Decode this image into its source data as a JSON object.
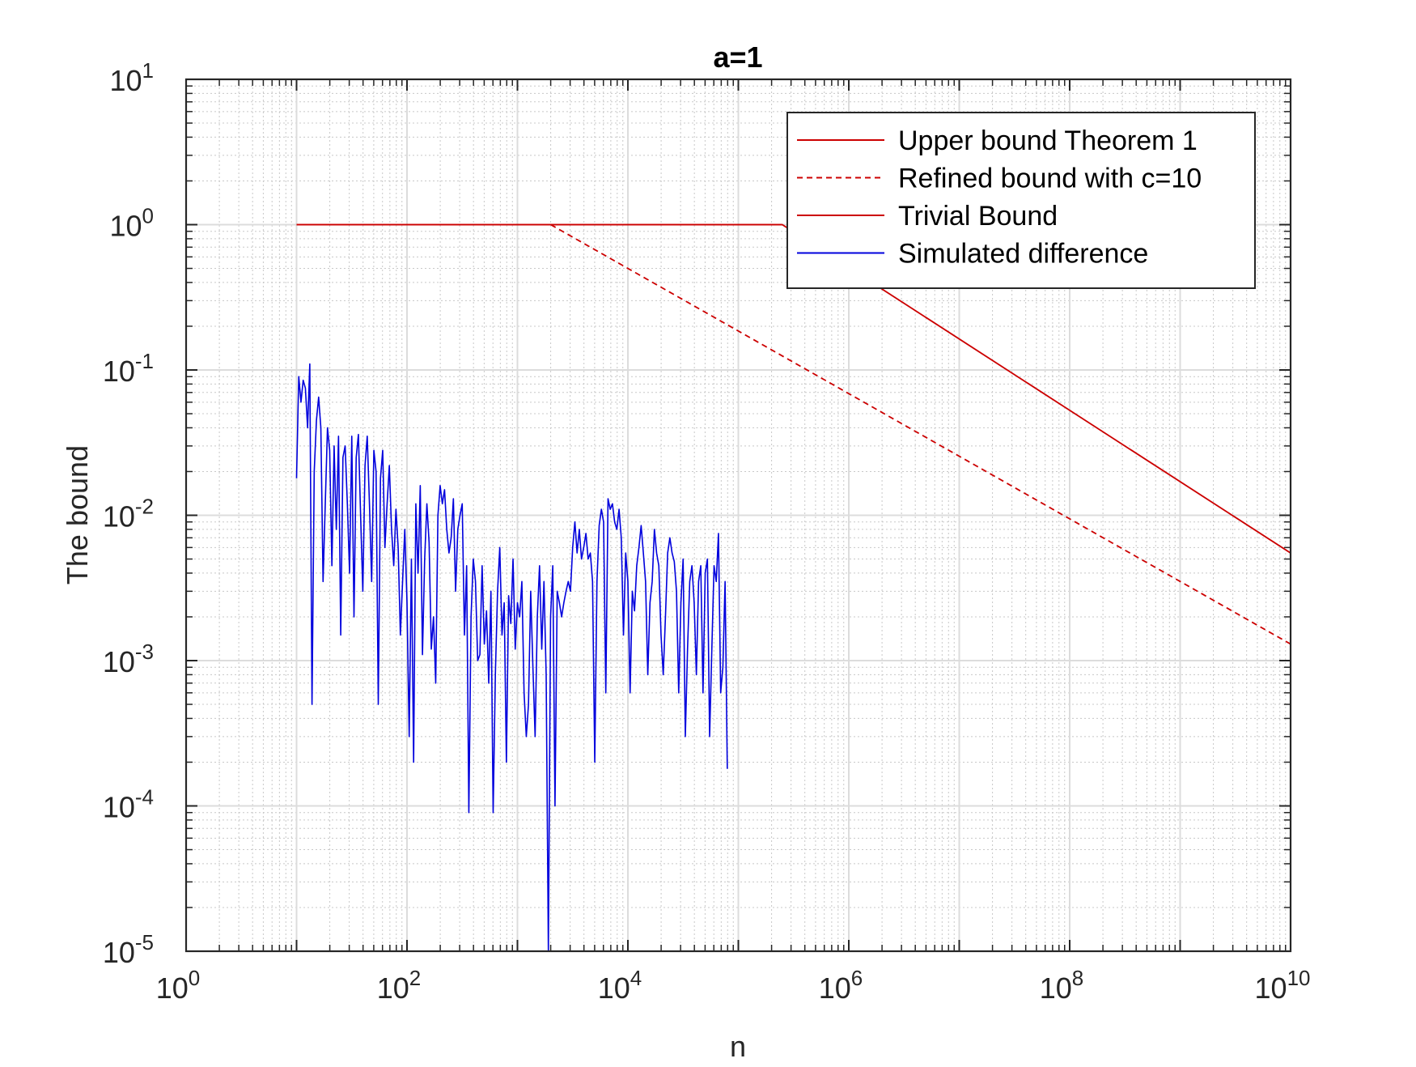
{
  "chart_data": {
    "type": "line",
    "title": "a=1",
    "xlabel": "n",
    "ylabel": "The bound",
    "xscale": "log",
    "yscale": "log",
    "xlim": [
      1,
      10000000000
    ],
    "ylim": [
      1e-05,
      10
    ],
    "grid": true,
    "minor_grid": true,
    "legend_location": "top-right",
    "x_ticks": [
      {
        "value": 1,
        "base": "10",
        "exp": "0"
      },
      {
        "value": 100,
        "base": "10",
        "exp": "2"
      },
      {
        "value": 10000,
        "base": "10",
        "exp": "4"
      },
      {
        "value": 1000000,
        "base": "10",
        "exp": "6"
      },
      {
        "value": 100000000,
        "base": "10",
        "exp": "8"
      },
      {
        "value": 10000000000,
        "base": "10",
        "exp": "10"
      }
    ],
    "y_ticks": [
      {
        "value": 1e-05,
        "base": "10",
        "exp": "-5"
      },
      {
        "value": 0.0001,
        "base": "10",
        "exp": "-4"
      },
      {
        "value": 0.001,
        "base": "10",
        "exp": "-3"
      },
      {
        "value": 0.01,
        "base": "10",
        "exp": "-2"
      },
      {
        "value": 0.1,
        "base": "10",
        "exp": "-1"
      },
      {
        "value": 1,
        "base": "10",
        "exp": "0"
      },
      {
        "value": 10,
        "base": "10",
        "exp": "1"
      }
    ],
    "series": [
      {
        "name": "Upper bound Theorem 1",
        "color": "#cc0000",
        "style": "solid",
        "x": [
          10,
          250000,
          10000000000
        ],
        "y": [
          1,
          1,
          0.0055
        ]
      },
      {
        "name": "Refined bound with c=10",
        "color": "#cc0000",
        "style": "dashed",
        "x": [
          2000,
          10000000000
        ],
        "y": [
          1,
          0.0013
        ]
      },
      {
        "name": "Trivial Bound",
        "color": "#cc0000",
        "style": "solid",
        "x": [
          10,
          250000
        ],
        "y": [
          1,
          1
        ]
      },
      {
        "name": "Simulated difference",
        "color": "#0000dd",
        "style": "solid",
        "x_log10_start": 1.0,
        "x_log10_step": 0.02,
        "y": [
          0.018,
          0.09,
          0.06,
          0.085,
          0.075,
          0.04,
          0.11,
          0.0005,
          0.02,
          0.045,
          0.065,
          0.04,
          0.0035,
          0.012,
          0.04,
          0.028,
          0.0045,
          0.03,
          0.008,
          0.035,
          0.0015,
          0.025,
          0.03,
          0.012,
          0.004,
          0.035,
          0.002,
          0.025,
          0.036,
          0.01,
          0.003,
          0.022,
          0.035,
          0.012,
          0.0035,
          0.028,
          0.02,
          0.0005,
          0.018,
          0.028,
          0.006,
          0.012,
          0.022,
          0.008,
          0.0045,
          0.011,
          0.006,
          0.0015,
          0.0035,
          0.008,
          0.0025,
          0.0003,
          0.005,
          0.0002,
          0.012,
          0.004,
          0.016,
          0.0011,
          0.005,
          0.012,
          0.0065,
          0.0012,
          0.002,
          0.0007,
          0.01,
          0.016,
          0.012,
          0.015,
          0.008,
          0.0055,
          0.007,
          0.013,
          0.003,
          0.008,
          0.01,
          0.012,
          0.0015,
          0.0045,
          9e-05,
          0.002,
          0.005,
          0.0035,
          0.001,
          0.0011,
          0.0045,
          0.0013,
          0.0022,
          0.0007,
          0.003,
          9e-05,
          0.0008,
          0.003,
          0.006,
          0.0015,
          0.0025,
          0.0002,
          0.0028,
          0.0018,
          0.005,
          0.0012,
          0.0025,
          0.002,
          0.0035,
          0.0006,
          0.0003,
          0.0005,
          0.003,
          0.0009,
          0.0003,
          0.002,
          0.0045,
          0.0012,
          0.0035,
          0.0008,
          1e-05,
          0.002,
          0.0045,
          0.0001,
          0.003,
          0.0025,
          0.002,
          0.0025,
          0.003,
          0.0035,
          0.003,
          0.006,
          0.009,
          0.0055,
          0.008,
          0.005,
          0.006,
          0.0075,
          0.005,
          0.0055,
          0.0035,
          0.0002,
          0.0035,
          0.0085,
          0.011,
          0.009,
          0.0006,
          0.013,
          0.011,
          0.012,
          0.009,
          0.008,
          0.011,
          0.007,
          0.0015,
          0.0055,
          0.0035,
          0.0006,
          0.003,
          0.0022,
          0.0045,
          0.006,
          0.0085,
          0.0055,
          0.0035,
          0.0008,
          0.0025,
          0.0035,
          0.008,
          0.0055,
          0.0045,
          0.0015,
          0.0008,
          0.002,
          0.0055,
          0.007,
          0.0055,
          0.0048,
          0.003,
          0.0006,
          0.0025,
          0.005,
          0.0003,
          0.0012,
          0.0035,
          0.0045,
          0.0025,
          0.0008,
          0.0035,
          0.0045,
          0.0006,
          0.004,
          0.005,
          0.0003,
          0.0012,
          0.0045,
          0.0035,
          0.0075,
          0.0006,
          0.0009,
          0.0035,
          0.00018
        ]
      }
    ]
  }
}
